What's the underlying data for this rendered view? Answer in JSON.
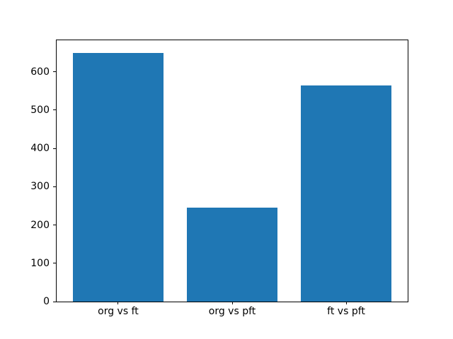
{
  "figure": {
    "background_color": "#ffffff",
    "spine_color": "#000000",
    "text_color": "#000000"
  },
  "chart_data": {
    "type": "bar",
    "title": "",
    "xlabel": "",
    "ylabel": "",
    "categories": [
      "org vs ft",
      "org vs pft",
      "ft vs pft"
    ],
    "values": [
      650,
      245,
      565
    ],
    "bar_color": "#1f77b4",
    "bar_half_width": 0.4,
    "yticks": [
      0,
      100,
      200,
      300,
      400,
      500,
      600
    ],
    "ylim": [
      0,
      682.5
    ],
    "xlim": [
      -0.54,
      2.54
    ],
    "grid": false,
    "legend": null
  }
}
